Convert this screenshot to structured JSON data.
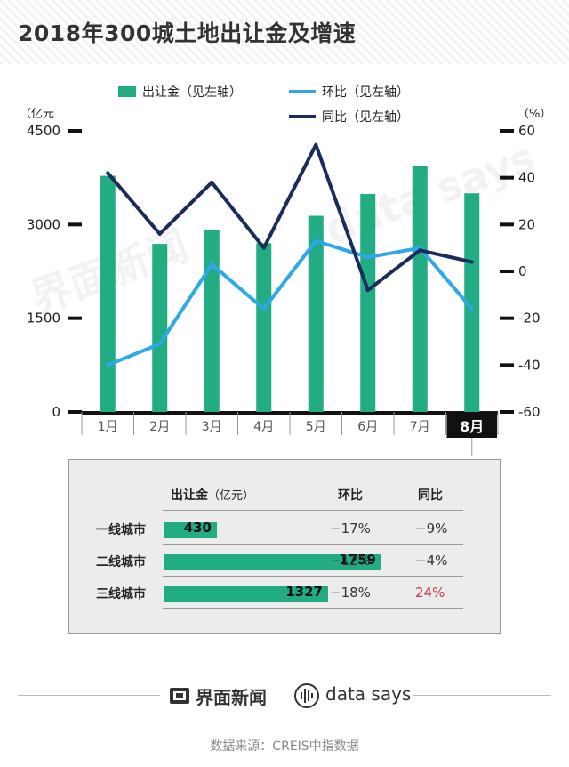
{
  "title": "2018年300城土地出让金及增速",
  "chart_data": {
    "type": "bar",
    "categories": [
      "1月",
      "2月",
      "3月",
      "4月",
      "5月",
      "6月",
      "7月",
      "8月"
    ],
    "highlight_category": "8月",
    "series": [
      {
        "name": "出让金（见左轴）",
        "kind": "bar",
        "axis": "left",
        "color": "#22ac83",
        "values": [
          3780,
          2690,
          2920,
          2700,
          3140,
          3490,
          3940,
          3500
        ]
      },
      {
        "name": "环比（见左轴）",
        "kind": "line",
        "axis": "right",
        "color": "#2ea8e6",
        "values": [
          -40,
          -31,
          3,
          -16,
          13,
          6,
          10,
          -16
        ]
      },
      {
        "name": "同比（见左轴）",
        "kind": "line",
        "axis": "right",
        "color": "#1a2c5c",
        "values": [
          42,
          16,
          38,
          10,
          54,
          -8,
          9,
          4
        ]
      }
    ],
    "left_axis": {
      "unit": "（亿元",
      "ylim": [
        0,
        4500
      ],
      "ticks": [
        0,
        1500,
        3000,
        4500
      ]
    },
    "right_axis": {
      "unit": "（%）",
      "ylim": [
        -60,
        60
      ],
      "ticks": [
        -60,
        -40,
        -20,
        0,
        20,
        40,
        60
      ]
    },
    "legend_position": "top",
    "grid": false
  },
  "table": {
    "headers": {
      "amount": "出让金",
      "amount_unit": "（亿元）",
      "hb": "环比",
      "tb": "同比"
    },
    "max_amount": 1759,
    "rows": [
      {
        "city": "一线城市",
        "amount": 430,
        "hb": "−17%",
        "tb": "−9%",
        "tb_positive": false
      },
      {
        "city": "二线城市",
        "amount": 1759,
        "hb": "−12%",
        "tb": "−4%",
        "tb_positive": false
      },
      {
        "city": "三线城市",
        "amount": 1327,
        "hb": "−18%",
        "tb": "24%",
        "tb_positive": true
      }
    ]
  },
  "footer": {
    "brand": "界面新闻",
    "brand2": "data says",
    "source": "数据来源：CREIS中指数据"
  },
  "watermarks": [
    "界面新闻",
    "data says"
  ],
  "colors": {
    "bar": "#22ac83",
    "hb_line": "#2ea8e6",
    "tb_line": "#1a2c5c",
    "positive": "#c0394b"
  }
}
